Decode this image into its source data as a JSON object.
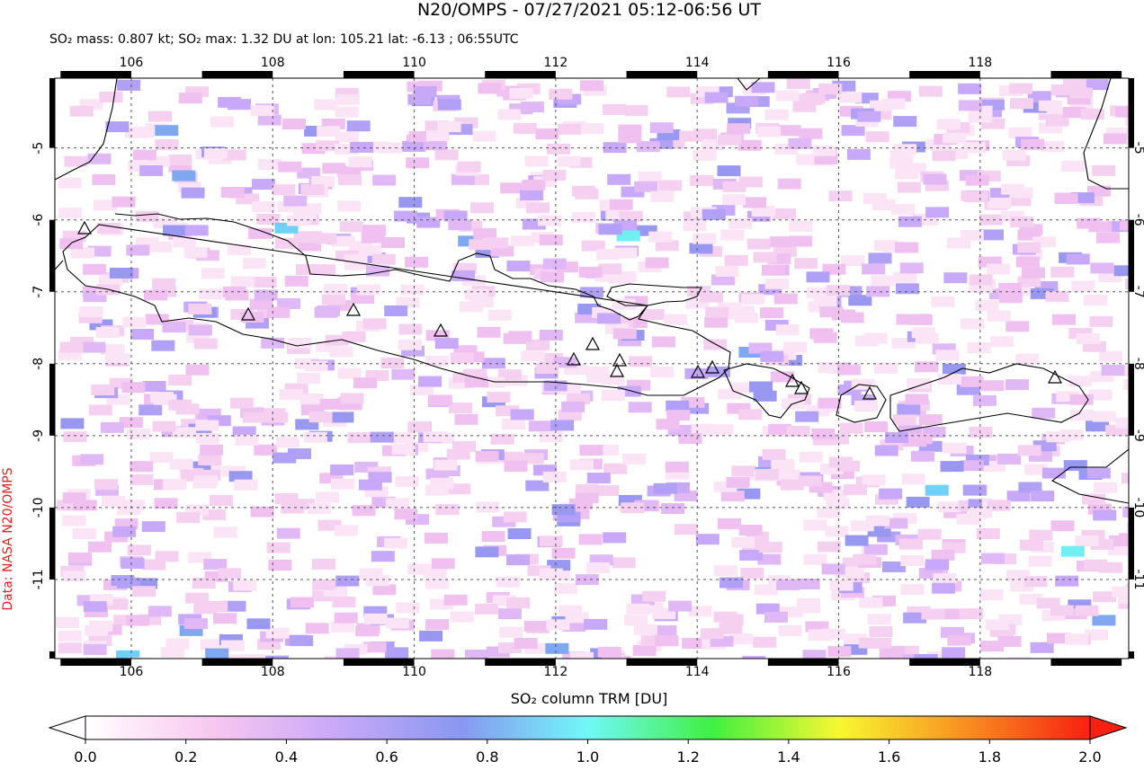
{
  "title": "N20/OMPS - 07/27/2021 05:12-06:56 UT",
  "subtitle": "SO₂ mass: 0.807 kt; SO₂ max: 1.32 DU at lon: 105.21 lat: -6.13 ; 06:55UTC",
  "source_label": "Data: NASA N20/OMPS",
  "map": {
    "xlim": [
      104.92,
      120.1
    ],
    "ylim": [
      -12.1,
      -4.03
    ],
    "xticks": [
      106,
      108,
      110,
      112,
      114,
      116,
      118
    ],
    "yticks": [
      -11,
      -10,
      -9,
      -8,
      -7,
      -6,
      -5
    ]
  },
  "colorbar": {
    "label": "SO₂ column TRM [DU]",
    "lim": [
      0,
      2
    ],
    "colors": [
      "#ffffff",
      "#f8c8f0",
      "#c8a8f8",
      "#8898f0",
      "#70f8f8",
      "#40f040",
      "#f8f830",
      "#f89020",
      "#f82010"
    ],
    "ticks": [
      {
        "value": 0,
        "label": "0.0"
      },
      {
        "value": 0.2,
        "label": "0.2"
      },
      {
        "value": 0.4,
        "label": "0.4"
      },
      {
        "value": 0.6,
        "label": "0.6"
      },
      {
        "value": 0.8,
        "label": "0.8"
      },
      {
        "value": 1,
        "label": "1.0"
      },
      {
        "value": 1.2,
        "label": "1.2"
      },
      {
        "value": 1.4,
        "label": "1.4"
      },
      {
        "value": 1.6,
        "label": "1.6"
      },
      {
        "value": 1.8,
        "label": "1.8"
      },
      {
        "value": 2,
        "label": "2.0"
      }
    ]
  }
}
